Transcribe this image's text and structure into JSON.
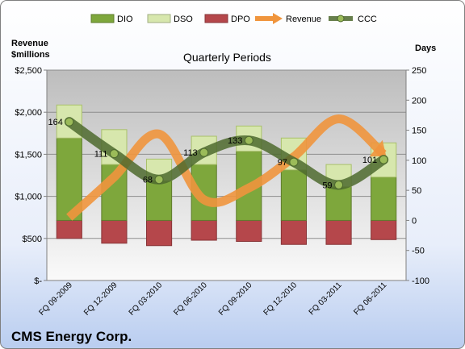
{
  "chart_data": {
    "type": "bar",
    "title": "Quarterly Periods",
    "company": "CMS Energy Corp.",
    "left_axis": {
      "label_line1": "Revenue",
      "label_line2": "$millions",
      "ylim": [
        0,
        2500
      ],
      "ticks": [
        0,
        500,
        1000,
        1500,
        2000,
        2500
      ],
      "tick_labels": [
        "$-",
        "$500",
        "$1,000",
        "$1,500",
        "$2,000",
        "$2,500"
      ]
    },
    "right_axis": {
      "label": "Days",
      "ylim": [
        -100,
        250
      ],
      "ticks": [
        -100,
        -50,
        0,
        50,
        100,
        150,
        200,
        250
      ],
      "tick_labels": [
        "-100",
        "-50",
        "0",
        "50",
        "100",
        "150",
        "200",
        "250"
      ]
    },
    "categories": [
      "FQ 09-2009",
      "FQ 12-2009",
      "FQ 03-2010",
      "FQ 06-2010",
      "FQ 09-2010",
      "FQ 12-2010",
      "FQ 03-2011",
      "FQ 06-2011"
    ],
    "legend_placement": "top",
    "legend": [
      "DIO",
      "DSO",
      "DPO",
      "Revenue",
      "CCC"
    ],
    "series": [
      {
        "name": "DIO",
        "kind": "stacked_bar",
        "axis": "right",
        "color": "#7ea73c",
        "values": [
          137,
          93,
          66,
          93,
          115,
          84,
          56,
          72
        ]
      },
      {
        "name": "DSO",
        "kind": "stacked_bar",
        "axis": "right",
        "color": "#d7e7ad",
        "values": [
          55,
          58,
          36,
          47,
          42,
          53,
          37,
          57
        ]
      },
      {
        "name": "DPO",
        "kind": "negative_bar",
        "axis": "right",
        "color": "#b5474b",
        "values": [
          -30,
          -38,
          -42,
          -33,
          -35,
          -40,
          -40,
          -32
        ]
      },
      {
        "name": "Revenue",
        "kind": "line",
        "axis": "left",
        "color": "#f0953d",
        "values": [
          750,
          1230,
          1740,
          960,
          1100,
          1470,
          1920,
          1500
        ]
      },
      {
        "name": "CCC",
        "kind": "line",
        "axis": "right",
        "color": "#4e6a2e",
        "values": [
          164,
          111,
          68,
          113,
          133,
          97,
          59,
          101
        ]
      }
    ],
    "data_labels": [
      "164",
      "111",
      "68",
      "113",
      "133",
      "97",
      "59",
      "101"
    ],
    "grid": true
  }
}
